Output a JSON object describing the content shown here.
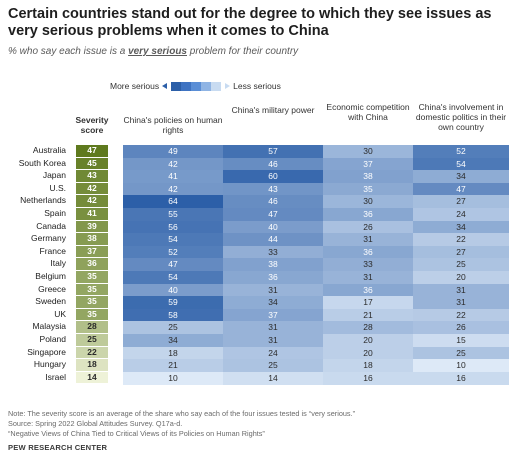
{
  "title": "Certain countries stand out for the degree to which they see issues as very serious problems when it comes to China",
  "subtitle": {
    "before": "% who say each issue is a ",
    "emph": "very serious",
    "after": " problem for their country"
  },
  "legend": {
    "more": "More serious",
    "less": "Less serious",
    "swatch_colors": [
      "#2c5fa8",
      "#3e73c2",
      "#5a8ed6",
      "#8fb4e4",
      "#c8dbf1"
    ]
  },
  "colors": {
    "severity_dark": "#5f7a1e",
    "severity_light": "#eef2d8",
    "cell_darkest": "#2c5fa8",
    "cell_lightest": "#dde9f7"
  },
  "headers": {
    "severity": "Severity score",
    "col1": "China's policies on human rights",
    "col2": "China's military power",
    "col3": "Economic competition with China",
    "col4": "China's involvement in domestic politics in their own country"
  },
  "chart_data": {
    "type": "heatmap",
    "title": "Certain countries stand out for the degree to which they see issues as very serious problems when it comes to China",
    "rows": [
      "Australia",
      "South Korea",
      "Japan",
      "U.S.",
      "Netherlands",
      "Spain",
      "Canada",
      "Germany",
      "France",
      "Italy",
      "Belgium",
      "Greece",
      "Sweden",
      "UK",
      "Malaysia",
      "Poland",
      "Singapore",
      "Hungary",
      "Israel"
    ],
    "severity": [
      47,
      45,
      43,
      42,
      42,
      41,
      39,
      38,
      37,
      36,
      35,
      35,
      35,
      35,
      28,
      25,
      22,
      18,
      14
    ],
    "columns": [
      "China's policies on human rights",
      "China's military power",
      "Economic competition with China",
      "China's involvement in domestic politics in their own country"
    ],
    "values": [
      [
        49,
        57,
        30,
        52
      ],
      [
        42,
        46,
        37,
        54
      ],
      [
        41,
        60,
        38,
        34
      ],
      [
        42,
        43,
        35,
        47
      ],
      [
        64,
        46,
        30,
        27
      ],
      [
        55,
        47,
        36,
        24
      ],
      [
        56,
        40,
        26,
        34
      ],
      [
        54,
        44,
        31,
        22
      ],
      [
        52,
        33,
        36,
        27
      ],
      [
        47,
        38,
        33,
        25
      ],
      [
        54,
        36,
        31,
        20
      ],
      [
        40,
        31,
        36,
        31
      ],
      [
        59,
        34,
        17,
        31
      ],
      [
        58,
        37,
        21,
        22
      ],
      [
        25,
        31,
        28,
        26
      ],
      [
        34,
        31,
        20,
        15
      ],
      [
        18,
        24,
        20,
        25
      ],
      [
        21,
        25,
        18,
        10
      ],
      [
        10,
        14,
        16,
        16
      ]
    ]
  },
  "notes": {
    "note": "Note: The severity score is an average of the share who say each of the four issues tested is “very serious.”",
    "source": "Source: Spring 2022 Global Attitudes Survey. Q17a-d.",
    "report": "“Negative Views of China Tied to Critical Views of its Policies on Human Rights”",
    "brand": "PEW RESEARCH CENTER"
  }
}
